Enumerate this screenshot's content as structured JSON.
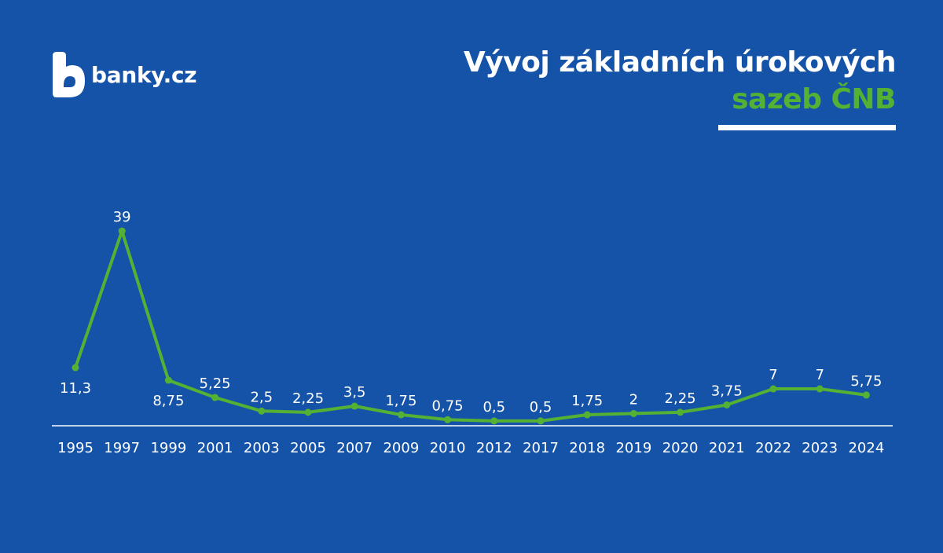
{
  "brand": {
    "name": "banky.cz"
  },
  "title": {
    "line1": "Vývoj základních úrokových",
    "line2": "sazeb ČNB"
  },
  "colors": {
    "background": "#1553a9",
    "accent": "#55b133",
    "text": "#ffffff"
  },
  "chart_data": {
    "type": "line",
    "categories": [
      "1995",
      "1997",
      "1999",
      "2001",
      "2003",
      "2005",
      "2007",
      "2009",
      "2010",
      "2012",
      "2017",
      "2018",
      "2019",
      "2020",
      "2021",
      "2022",
      "2023",
      "2024"
    ],
    "values": [
      11.3,
      39,
      8.75,
      5.25,
      2.5,
      2.25,
      3.5,
      1.75,
      0.75,
      0.5,
      0.5,
      1.75,
      2,
      2.25,
      3.75,
      7,
      7,
      5.75
    ],
    "value_labels": [
      "11,3",
      "39",
      "8,75",
      "5,25",
      "2,5",
      "2,25",
      "3,5",
      "1,75",
      "0,75",
      "0,5",
      "0,5",
      "1,75",
      "2",
      "2,25",
      "3,75",
      "7",
      "7",
      "5,75"
    ],
    "ylim": [
      0,
      40
    ],
    "grid": false,
    "legend": "none"
  }
}
